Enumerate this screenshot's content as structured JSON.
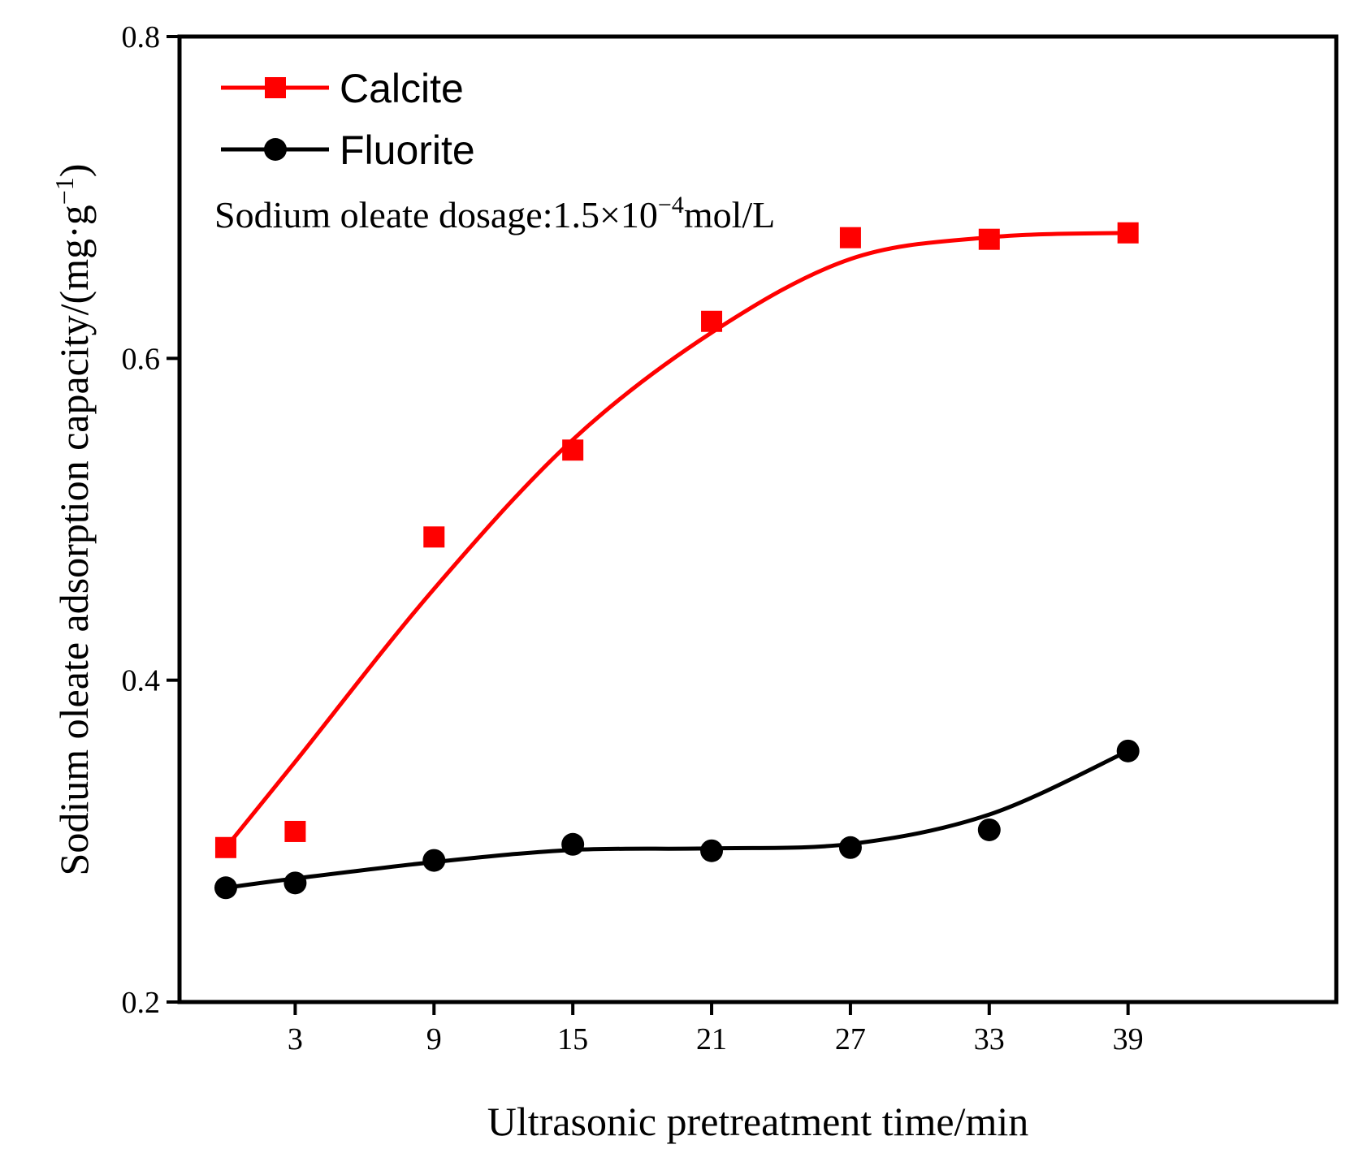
{
  "chart_data": {
    "type": "line",
    "title": "",
    "xlabel": "Ultrasonic pretreatment time/min",
    "ylabel": {
      "main": "Sodium oleate adsorption capacity/(mg·g",
      "sup": "−1",
      "close": ")"
    },
    "xlim": [
      -2,
      48
    ],
    "ylim": [
      0.2,
      0.8
    ],
    "x_ticks": [
      3,
      9,
      15,
      21,
      27,
      33,
      39
    ],
    "y_ticks": [
      0.2,
      0.4,
      0.6,
      0.8
    ],
    "y_tick_labels": [
      "0.2",
      "0.4",
      "0.6",
      "0.8"
    ],
    "legend_position": "top-left",
    "annotation": {
      "prefix": "Sodium oleate dosage:1.5×10",
      "sup": "−4",
      "suffix": "mol/L"
    },
    "series": [
      {
        "name": "Calcite",
        "color": "#ff0000",
        "marker": "square",
        "x": [
          0,
          3,
          9,
          15,
          21,
          27,
          33,
          39
        ],
        "y": [
          0.296,
          0.306,
          0.489,
          0.543,
          0.623,
          0.675,
          0.674,
          0.678
        ]
      },
      {
        "name": "Fluorite",
        "color": "#000000",
        "marker": "circle",
        "x": [
          0,
          3,
          9,
          15,
          21,
          27,
          33,
          39
        ],
        "y": [
          0.271,
          0.274,
          0.288,
          0.298,
          0.294,
          0.296,
          0.307,
          0.356
        ]
      }
    ]
  }
}
